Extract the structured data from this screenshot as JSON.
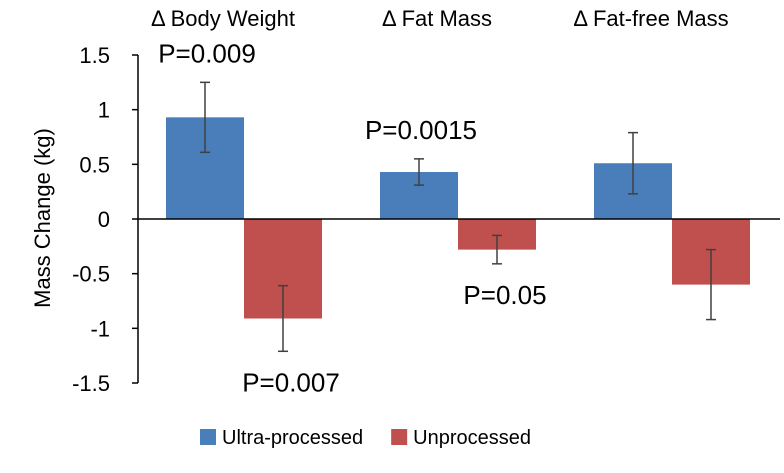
{
  "chart_data": {
    "type": "bar",
    "categories": [
      "Δ Body Weight",
      "Δ Fat Mass",
      "Δ Fat-free Mass"
    ],
    "series": [
      {
        "name": "Ultra-processed",
        "color": "#4a7ebb",
        "values": [
          0.93,
          0.43,
          0.51
        ],
        "error": [
          0.32,
          0.12,
          0.28
        ]
      },
      {
        "name": "Unprocessed",
        "color": "#c0504d",
        "values": [
          -0.91,
          -0.28,
          -0.6
        ],
        "error": [
          0.3,
          0.13,
          0.32
        ]
      }
    ],
    "ylabel": "Mass Change (kg)",
    "xlabel": "",
    "ylim": [
      -1.5,
      1.5
    ],
    "yticks": [
      -1.5,
      -1,
      -0.5,
      0,
      0.5,
      1,
      1.5
    ],
    "ytick_labels": [
      "-1.5",
      "-1",
      "-0.5",
      "0",
      "0.5",
      "1",
      "1.5"
    ],
    "grid": false,
    "legend_position": "bottom",
    "annotations": [
      {
        "text": "P=0.009",
        "category": 0,
        "series": 0
      },
      {
        "text": "P=0.007",
        "category": 0,
        "series": 1
      },
      {
        "text": "P=0.0015",
        "category": 1,
        "series": 0
      },
      {
        "text": "P=0.05",
        "category": 1,
        "series": 1
      }
    ]
  }
}
